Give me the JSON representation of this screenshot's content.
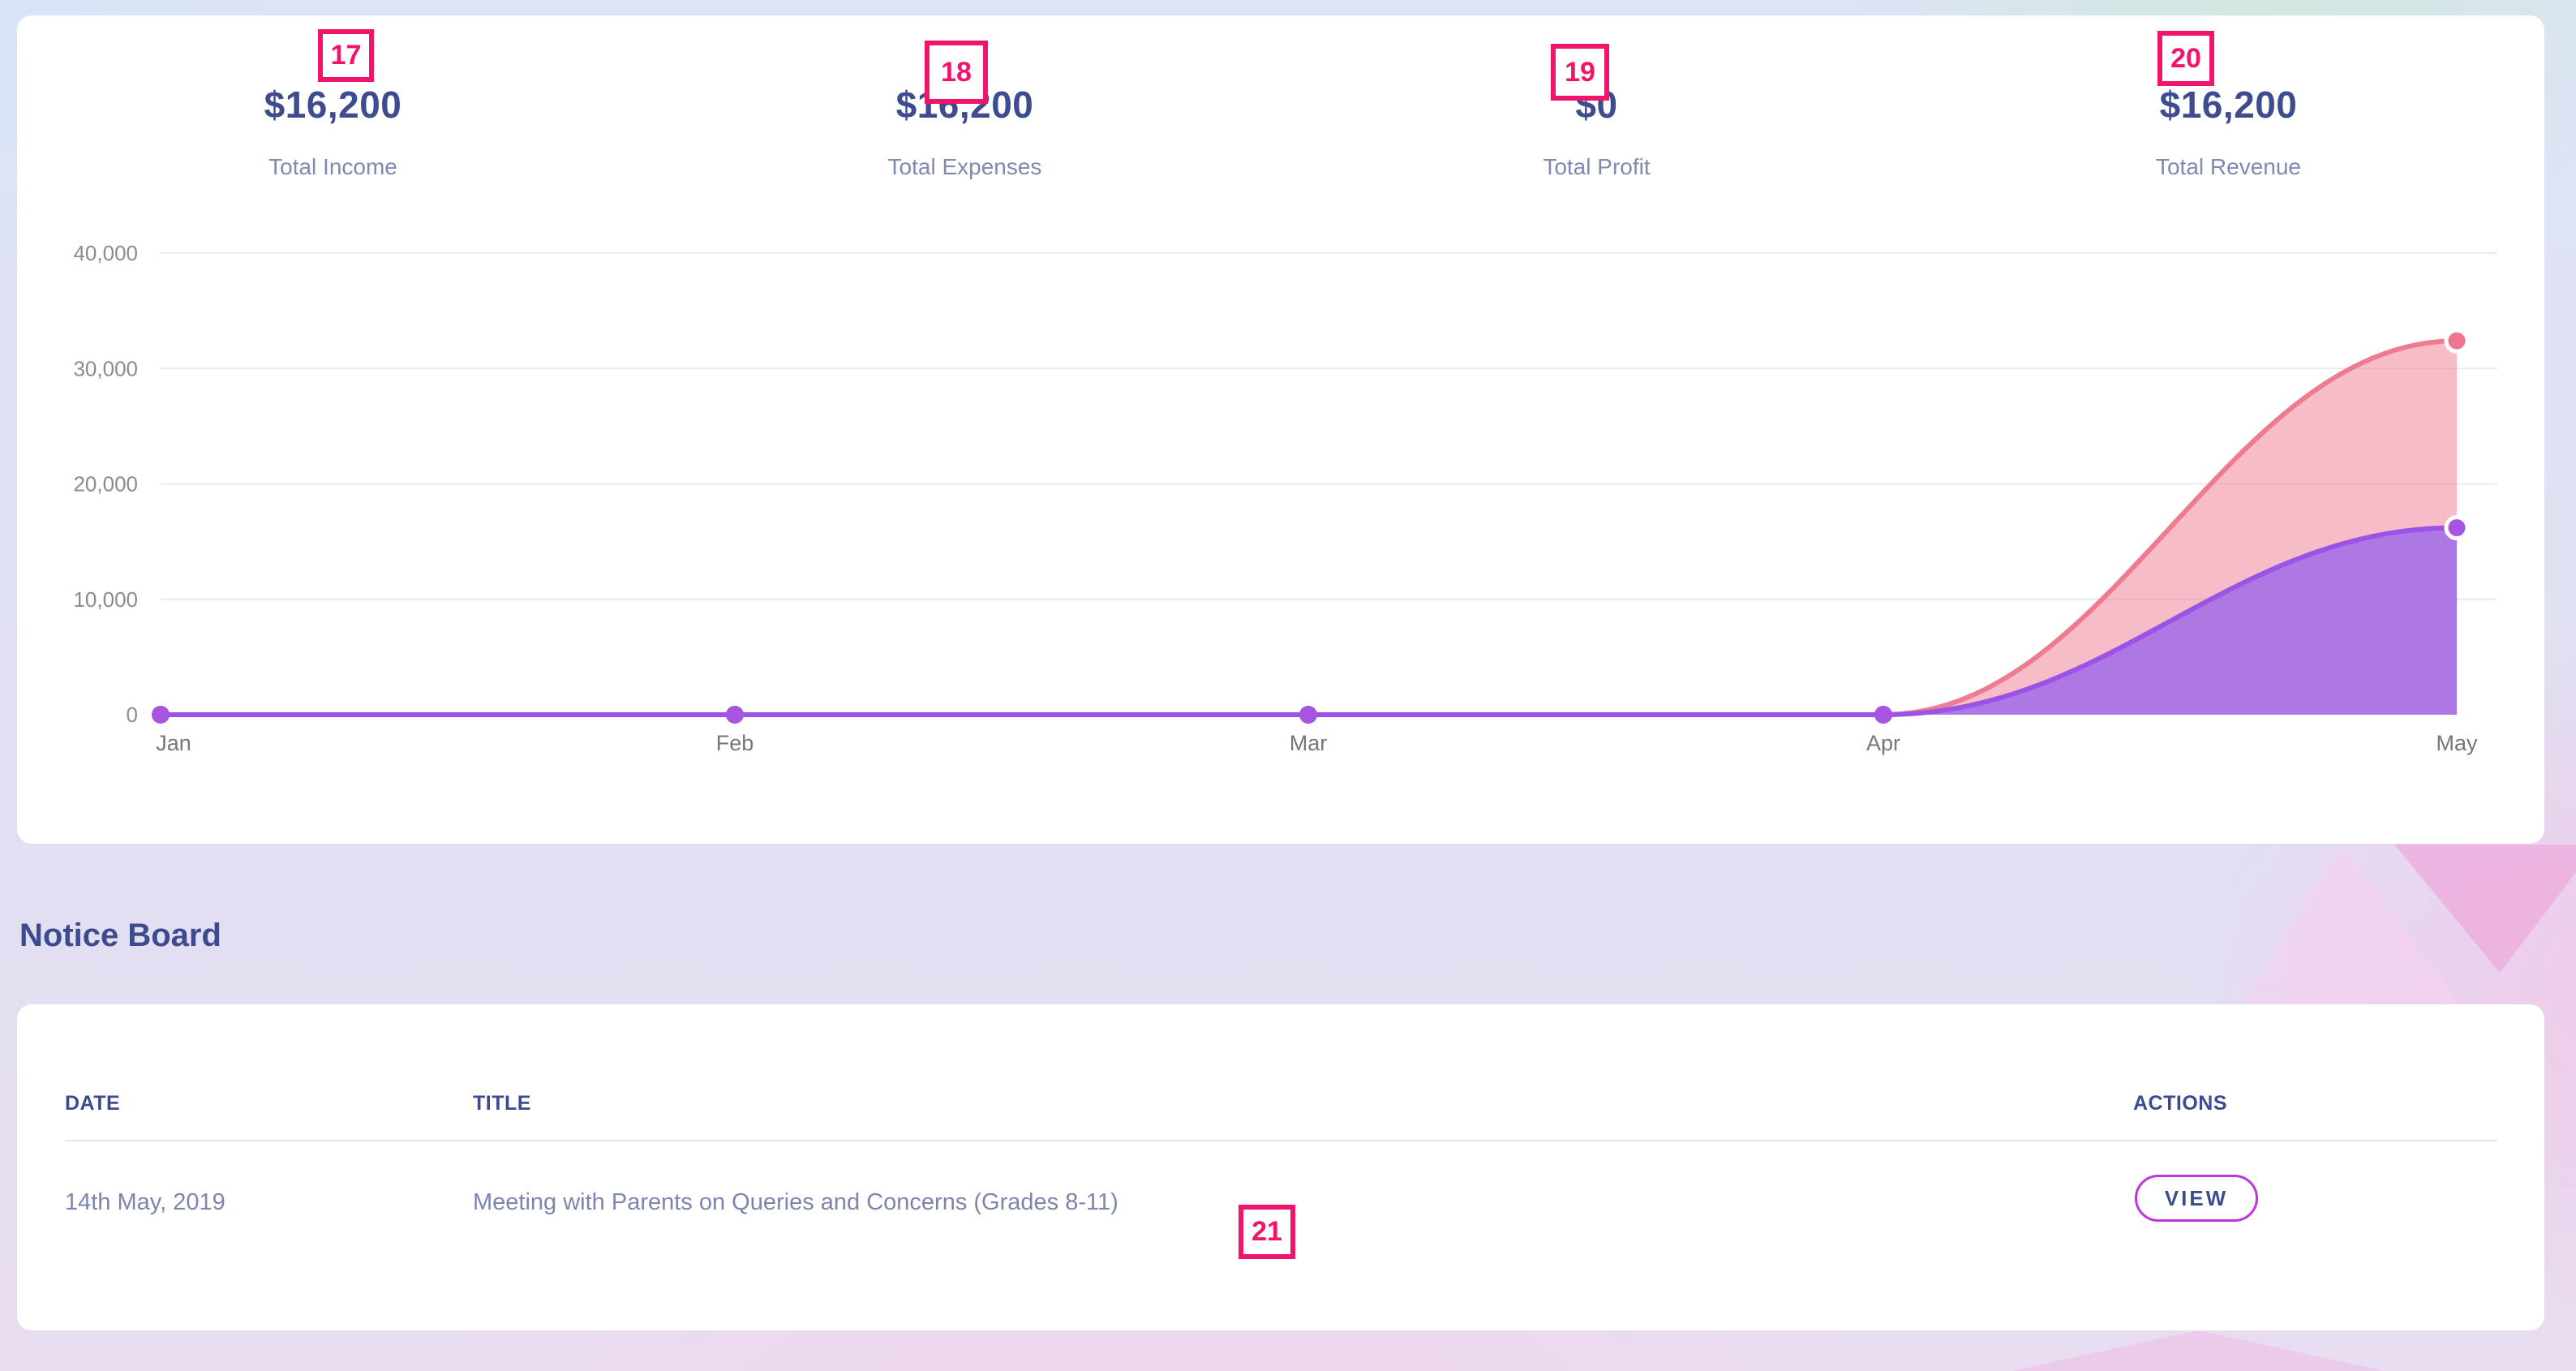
{
  "stats": [
    {
      "value": "$16,200",
      "label": "Total Income"
    },
    {
      "value": "$16,200",
      "label": "Total Expenses"
    },
    {
      "value": "$0",
      "label": "Total Profit"
    },
    {
      "value": "$16,200",
      "label": "Total Revenue"
    }
  ],
  "annotations": {
    "color": "#f0146a",
    "items": [
      {
        "number": "17"
      },
      {
        "number": "18"
      },
      {
        "number": "19"
      },
      {
        "number": "20"
      },
      {
        "number": "21"
      }
    ]
  },
  "chart_data": {
    "type": "area",
    "stacked": true,
    "categories": [
      "Jan",
      "Feb",
      "Mar",
      "Apr",
      "May"
    ],
    "series": [
      {
        "name": "series-1-purple",
        "color": "#9a53e6",
        "marker_color": "#a854e3",
        "fill": "rgba(148,97,238,0.75)",
        "values": [
          0,
          0,
          0,
          0,
          16200
        ]
      },
      {
        "name": "series-2-pink",
        "color": "#ee7b90",
        "marker_color": "#ef758e",
        "fill": "rgba(238,123,146,0.5)",
        "values": [
          0,
          0,
          0,
          0,
          16200
        ]
      }
    ],
    "title": "",
    "xlabel": "",
    "ylabel": "",
    "ylim": [
      0,
      40000
    ],
    "yticks": [
      0,
      10000,
      20000,
      30000,
      40000
    ],
    "ytick_labels": [
      "0",
      "10,000",
      "20,000",
      "30,000",
      "40,000"
    ],
    "grid": true,
    "legend": "none",
    "notes": "lines flat at 0 from Jan to Apr; May stacked top reaches 32,400"
  },
  "notice_board": {
    "heading": "Notice Board",
    "columns": [
      "DATE",
      "TITLE",
      "ACTIONS"
    ],
    "rows": [
      {
        "date": "14th May, 2019",
        "title": "Meeting with Parents on Queries and Concerns (Grades 8-11)",
        "action_label": "VIEW"
      }
    ]
  },
  "colors": {
    "navy": "#3d4c8e",
    "muted_label": "#8089b0",
    "axis_text": "#8b8b94",
    "badge": "#f0146a",
    "view_border": "#bf35dd",
    "card_bg": "#ffffff"
  }
}
